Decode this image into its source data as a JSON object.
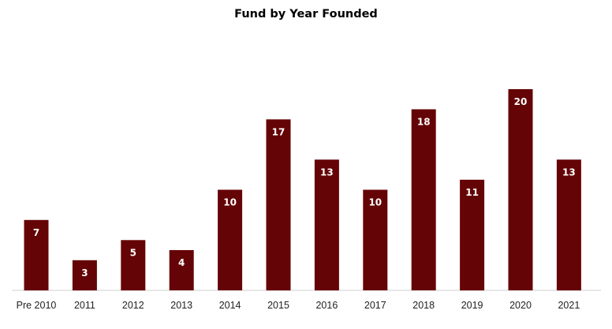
{
  "chart_data": {
    "type": "bar",
    "title": "Fund by Year Founded",
    "xlabel": "",
    "ylabel": "",
    "categories": [
      "Pre 2010",
      "2011",
      "2012",
      "2013",
      "2014",
      "2015",
      "2016",
      "2017",
      "2018",
      "2019",
      "2020",
      "2021"
    ],
    "values": [
      7,
      3,
      5,
      4,
      10,
      17,
      13,
      10,
      18,
      11,
      20,
      13
    ],
    "ylim": [
      0,
      20
    ],
    "grid": false,
    "legend": "none",
    "data_labels": true,
    "bar_color": "#650406",
    "label_color": "#ffffff"
  }
}
